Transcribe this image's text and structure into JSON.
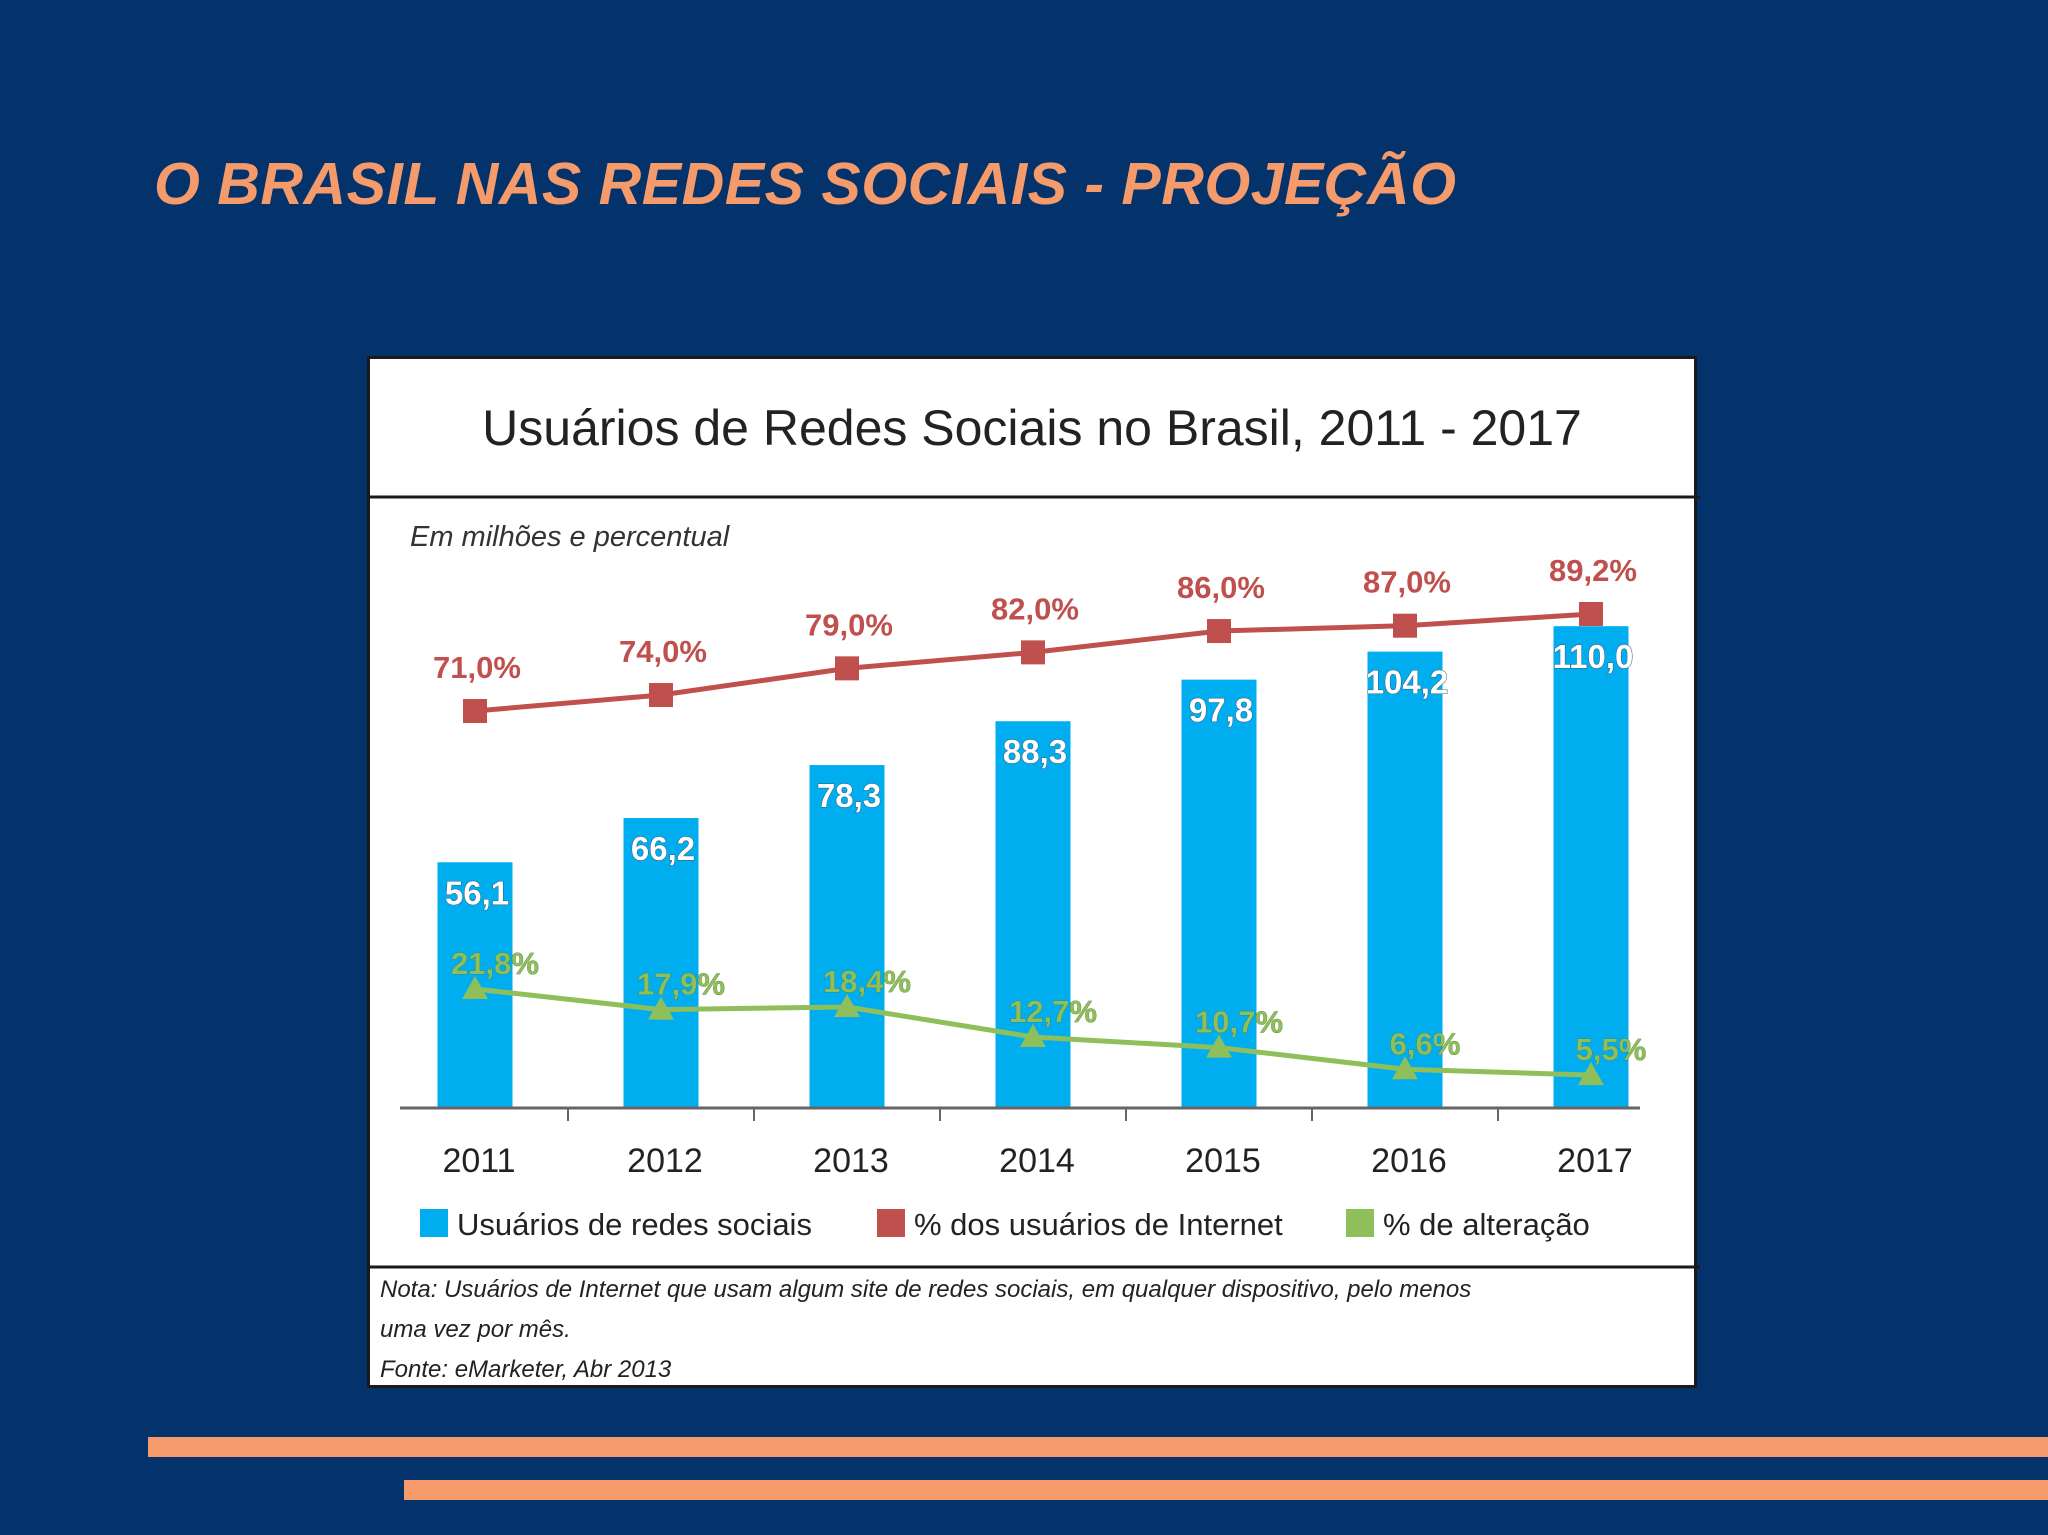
{
  "slide": {
    "title": "O BRASIL NAS REDES SOCIAIS - PROJEÇÃO"
  },
  "colors": {
    "background": "#04326a",
    "accent": "#f59a6b",
    "bars": "#00aeef",
    "red_series": "#c0504d",
    "green_series": "#8fbf5a"
  },
  "chart_data": {
    "type": "bar",
    "title": "Usuários de Redes Sociais no Brasil, 2011 - 2017",
    "subtitle": "Em milhões e percentual",
    "categories": [
      "2011",
      "2012",
      "2013",
      "2014",
      "2015",
      "2016",
      "2017"
    ],
    "series": [
      {
        "name": "Usuários de redes sociais",
        "kind": "bar",
        "values": [
          56.1,
          66.2,
          78.3,
          88.3,
          97.8,
          104.2,
          110.0
        ],
        "labels": [
          "56,1",
          "66,2",
          "78,3",
          "88,3",
          "97,8",
          "104,2",
          "110,0"
        ]
      },
      {
        "name": "% dos usuários de Internet",
        "kind": "line",
        "values": [
          71.0,
          74.0,
          79.0,
          82.0,
          86.0,
          87.0,
          89.2
        ],
        "labels": [
          "71,0%",
          "74,0%",
          "79,0%",
          "82,0%",
          "86,0%",
          "87,0%",
          "89,2%"
        ]
      },
      {
        "name": "% de alteração",
        "kind": "line",
        "values": [
          21.8,
          17.9,
          18.4,
          12.7,
          10.7,
          6.6,
          5.5
        ],
        "labels": [
          "21,8%",
          "17,9%",
          "18,4%",
          "12,7%",
          "10,7%",
          "6,6%",
          "5,5%"
        ]
      }
    ],
    "legend": "bottom",
    "grid": false,
    "note": "Nota: Usuários de Internet que usam algum site de redes sociais, em qualquer dispositivo, pelo menos",
    "note2": "uma vez por mês.",
    "source": "Fonte: eMarketer, Abr 2013"
  }
}
